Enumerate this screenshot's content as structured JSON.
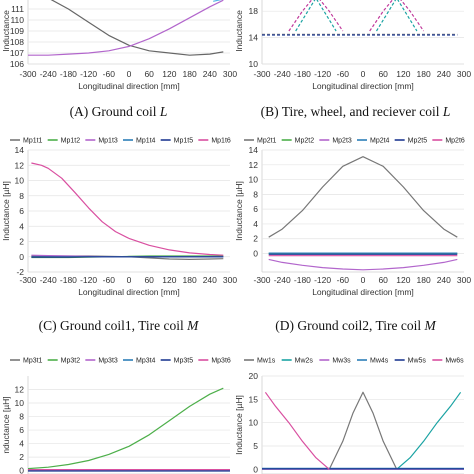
{
  "captions": {
    "a": {
      "text": "(A) Ground coil ",
      "symbol": "L"
    },
    "b": {
      "text": "(B) Tire, wheel, and reciever coil ",
      "symbol": "L"
    },
    "c": {
      "text": "(C) Ground coil1, Tire coil ",
      "symbol": "M"
    },
    "d": {
      "text": "(D) Ground coil2, Tire coil ",
      "symbol": "M"
    }
  },
  "chart_data": [
    {
      "id": "a",
      "type": "line",
      "ylabel": "Inductance",
      "xlabel": "Longitudinal direction [mm]",
      "xticks": [
        -300,
        -240,
        -180,
        -120,
        -60,
        0,
        60,
        120,
        180,
        240,
        300
      ],
      "yticks": [
        106,
        107,
        108,
        109,
        110,
        111
      ],
      "xlim": [
        -300,
        300
      ],
      "ylim": [
        106,
        112
      ],
      "legend": [],
      "series": [
        {
          "color": "#666666",
          "x": [
            -300,
            -240,
            -180,
            -120,
            -60,
            0,
            60,
            120,
            180,
            240,
            280
          ],
          "y": [
            112.6,
            112.0,
            111.0,
            109.8,
            108.6,
            107.7,
            107.2,
            107.0,
            106.8,
            106.9,
            107.1
          ]
        },
        {
          "color": "#b266cc",
          "x": [
            -300,
            -240,
            -180,
            -120,
            -60,
            0,
            60,
            120,
            180,
            240,
            280
          ],
          "y": [
            106.8,
            106.8,
            106.9,
            107.0,
            107.2,
            107.6,
            108.3,
            109.2,
            110.2,
            111.2,
            111.8
          ]
        },
        {
          "color": "#55b5e6",
          "x": [
            250,
            280
          ],
          "y": [
            111.7,
            111.9
          ]
        }
      ]
    },
    {
      "id": "b",
      "type": "line",
      "ylabel": "Inductance",
      "xlabel": "Longitudinal direction [mm]",
      "xticks": [
        -300,
        -240,
        -180,
        -120,
        -60,
        0,
        60,
        120,
        180,
        240,
        300
      ],
      "yticks": [
        10,
        14,
        18
      ],
      "xlim": [
        -300,
        300
      ],
      "ylim": [
        10,
        20
      ],
      "legend": [],
      "series": [
        {
          "color": "#888888",
          "dash": true,
          "x": [
            -300,
            -240,
            -180,
            -120,
            -60,
            0,
            60,
            120,
            180,
            240,
            280
          ],
          "y": [
            14.5,
            14.5,
            14.5,
            14.5,
            14.5,
            14.5,
            14.5,
            14.5,
            14.5,
            14.5,
            14.5
          ]
        },
        {
          "color": "#1f3a93",
          "dash": true,
          "x": [
            -300,
            -240,
            -180,
            -120,
            -60,
            0,
            60,
            120,
            180,
            240,
            280
          ],
          "y": [
            14.4,
            14.4,
            14.4,
            14.4,
            14.4,
            14.4,
            14.4,
            14.4,
            14.4,
            14.4,
            14.4
          ]
        },
        {
          "color": "#c0399b",
          "dash": true,
          "x": [
            -220,
            -180,
            -140,
            -100,
            -60
          ],
          "y": [
            15.0,
            18.0,
            20.5,
            18.0,
            15.0
          ]
        },
        {
          "color": "#1aa3a3",
          "dash": true,
          "x": [
            -200,
            -170,
            -140,
            -110,
            -80
          ],
          "y": [
            15.0,
            17.5,
            20.0,
            17.5,
            15.0
          ]
        },
        {
          "color": "#c0399b",
          "dash": true,
          "x": [
            20,
            60,
            100,
            140,
            180
          ],
          "y": [
            15.0,
            18.0,
            20.5,
            18.0,
            15.0
          ]
        },
        {
          "color": "#1aa3a3",
          "dash": true,
          "x": [
            40,
            70,
            100,
            130,
            160
          ],
          "y": [
            15.0,
            17.5,
            20.0,
            17.5,
            15.0
          ]
        }
      ]
    },
    {
      "id": "c",
      "type": "line",
      "ylabel": "Inductance [µH]",
      "xlabel": "Longitudinal direction [mm]",
      "xticks": [
        -300,
        -240,
        -180,
        -120,
        -60,
        0,
        60,
        120,
        180,
        240,
        300
      ],
      "yticks": [
        -2,
        0,
        2,
        4,
        6,
        8,
        10,
        12,
        14
      ],
      "xlim": [
        -300,
        300
      ],
      "ylim": [
        -2,
        14
      ],
      "legend": [
        "Mp1t1",
        "Mp1t2",
        "Mp1t3",
        "Mp1t4",
        "Mp1t5",
        "Mp1t6"
      ],
      "series": [
        {
          "name": "Mp1t1",
          "color": "#777777",
          "x": [
            -290,
            -240,
            -180,
            -120,
            -60,
            0,
            60,
            120,
            180,
            240,
            280
          ],
          "y": [
            0.1,
            0.1,
            0.1,
            0.1,
            0.05,
            0,
            -0.15,
            -0.3,
            -0.35,
            -0.3,
            -0.25
          ]
        },
        {
          "name": "Mp1t2",
          "color": "#4daf4a",
          "x": [
            -290,
            -240,
            -180,
            -120,
            -60,
            0,
            60,
            120,
            180,
            240,
            280
          ],
          "y": [
            -0.1,
            -0.1,
            -0.1,
            -0.05,
            0,
            0.05,
            0.1,
            0.1,
            0.1,
            0.1,
            0.1
          ]
        },
        {
          "name": "Mp1t3",
          "color": "#b266cc",
          "x": [
            -290,
            -240,
            -180,
            -120,
            -60,
            0,
            60,
            120,
            180,
            240,
            280
          ],
          "y": [
            0.2,
            0.15,
            0.1,
            0.05,
            0,
            0,
            0,
            0,
            0,
            0,
            0
          ]
        },
        {
          "name": "Mp1t4",
          "color": "#2c7fb8",
          "x": [
            -290,
            -240,
            -180,
            -120,
            -60,
            0,
            60,
            120,
            180,
            240,
            280
          ],
          "y": [
            0,
            0,
            0,
            0,
            0,
            0,
            0,
            0,
            0,
            0,
            0
          ]
        },
        {
          "name": "Mp1t5",
          "color": "#1f3a93",
          "x": [
            -290,
            -240,
            -180,
            -120,
            -60,
            0,
            60,
            120,
            180,
            240,
            280
          ],
          "y": [
            -0.05,
            -0.05,
            -0.05,
            0,
            0,
            0,
            0,
            0,
            0,
            0,
            0
          ]
        },
        {
          "name": "Mp1t6",
          "color": "#d94fa0",
          "x": [
            -290,
            -260,
            -240,
            -200,
            -160,
            -120,
            -80,
            -40,
            0,
            60,
            120,
            180,
            240,
            280
          ],
          "y": [
            12.3,
            12.0,
            11.6,
            10.3,
            8.4,
            6.4,
            4.6,
            3.3,
            2.4,
            1.5,
            0.9,
            0.5,
            0.3,
            0.2
          ]
        }
      ]
    },
    {
      "id": "d",
      "type": "line",
      "ylabel": "Inductance [µH]",
      "xlabel": "Longitudinal direction [mm]",
      "xticks": [
        -300,
        -240,
        -180,
        -120,
        -60,
        0,
        60,
        120,
        180,
        240,
        300
      ],
      "yticks": [
        0,
        2,
        4,
        6,
        8,
        10,
        12,
        14
      ],
      "xlim": [
        -300,
        300
      ],
      "ylim": [
        -2.5,
        14
      ],
      "legend": [
        "Mp2t1",
        "Mp2t2",
        "Mp2t3",
        "Mp2t4",
        "Mp2t5",
        "Mp2t6"
      ],
      "series": [
        {
          "name": "Mp2t1",
          "color": "#777777",
          "x": [
            -280,
            -240,
            -180,
            -120,
            -60,
            0,
            60,
            120,
            180,
            240,
            280
          ],
          "y": [
            2.2,
            3.3,
            5.8,
            9.0,
            11.8,
            13.1,
            11.8,
            9.0,
            5.8,
            3.3,
            2.2
          ]
        },
        {
          "name": "Mp2t2",
          "color": "#4daf4a",
          "x": [
            -280,
            -240,
            -180,
            -120,
            -60,
            0,
            60,
            120,
            180,
            240,
            280
          ],
          "y": [
            0,
            0,
            0,
            0,
            0,
            0,
            0,
            0,
            0,
            0,
            0
          ]
        },
        {
          "name": "Mp2t3",
          "color": "#b266cc",
          "x": [
            -280,
            -240,
            -180,
            -120,
            -60,
            0,
            60,
            120,
            180,
            240,
            280
          ],
          "y": [
            -0.8,
            -1.2,
            -1.6,
            -1.9,
            -2.1,
            -2.2,
            -2.1,
            -1.9,
            -1.6,
            -1.2,
            -0.8
          ]
        },
        {
          "name": "Mp2t4",
          "color": "#2c7fb8",
          "x": [
            -280,
            -240,
            -180,
            -120,
            -60,
            0,
            60,
            120,
            180,
            240,
            280
          ],
          "y": [
            0.05,
            0.05,
            0.05,
            0.05,
            0.05,
            0.05,
            0.05,
            0.05,
            0.05,
            0.05,
            0.05
          ]
        },
        {
          "name": "Mp2t5",
          "color": "#1f3a93",
          "x": [
            -280,
            -240,
            -180,
            -120,
            -60,
            0,
            60,
            120,
            180,
            240,
            280
          ],
          "y": [
            -0.1,
            -0.1,
            -0.1,
            -0.1,
            -0.1,
            -0.1,
            -0.1,
            -0.1,
            -0.1,
            -0.1,
            -0.1
          ]
        },
        {
          "name": "Mp2t6",
          "color": "#d94fa0",
          "x": [
            -280,
            -240,
            -180,
            -120,
            -60,
            0,
            60,
            120,
            180,
            240,
            280
          ],
          "y": [
            -0.3,
            -0.3,
            -0.3,
            -0.3,
            -0.3,
            -0.3,
            -0.3,
            -0.3,
            -0.3,
            -0.3,
            -0.3
          ]
        }
      ]
    },
    {
      "id": "e",
      "type": "line",
      "ylabel": "nductance [µH]",
      "xlabel": "",
      "xticks": [],
      "yticks": [
        0,
        2,
        4,
        6,
        8,
        10,
        12
      ],
      "xlim": [
        -300,
        300
      ],
      "ylim": [
        -0.5,
        14
      ],
      "legend": [
        "Mp3t1",
        "Mp3t2",
        "Mp3t3",
        "Mp3t4",
        "Mp3t5",
        "Mp3t6"
      ],
      "series": [
        {
          "name": "Mp3t1",
          "color": "#777777",
          "x": [
            -300,
            300
          ],
          "y": [
            0,
            0
          ]
        },
        {
          "name": "Mp3t2",
          "color": "#4daf4a",
          "x": [
            -300,
            -240,
            -180,
            -120,
            -60,
            0,
            60,
            120,
            180,
            240,
            280
          ],
          "y": [
            0.3,
            0.5,
            0.9,
            1.5,
            2.4,
            3.6,
            5.3,
            7.4,
            9.5,
            11.3,
            12.2
          ]
        },
        {
          "name": "Mp3t3",
          "color": "#b266cc",
          "x": [
            -300,
            300
          ],
          "y": [
            0.1,
            0.1
          ]
        },
        {
          "name": "Mp3t4",
          "color": "#2c7fb8",
          "x": [
            -300,
            300
          ],
          "y": [
            0.05,
            0.05
          ]
        },
        {
          "name": "Mp3t5",
          "color": "#1f3a93",
          "x": [
            -300,
            300
          ],
          "y": [
            -0.05,
            -0.05
          ]
        },
        {
          "name": "Mp3t6",
          "color": "#d94fa0",
          "x": [
            -300,
            300
          ],
          "y": [
            0.15,
            0.15
          ]
        }
      ]
    },
    {
      "id": "f",
      "type": "line",
      "ylabel": "Inductance [µH]",
      "xlabel": "",
      "xticks": [],
      "yticks": [
        0,
        5,
        10,
        15,
        20
      ],
      "xlim": [
        -300,
        300
      ],
      "ylim": [
        -1,
        20
      ],
      "legend": [
        "Mw1s",
        "Mw2s",
        "Mw3s",
        "Mw4s",
        "Mw5s",
        "Mw6s"
      ],
      "series": [
        {
          "name": "Mw1s",
          "color": "#777777",
          "x": [
            -100,
            -60,
            -30,
            0,
            30,
            60,
            100
          ],
          "y": [
            0,
            6,
            12,
            16.5,
            12,
            6,
            0
          ]
        },
        {
          "name": "Mw2s",
          "color": "#1aa3a3",
          "x": [
            100,
            140,
            180,
            220,
            260,
            290
          ],
          "y": [
            0,
            2.5,
            6,
            10,
            13.5,
            16.5
          ]
        },
        {
          "name": "Mw3s",
          "color": "#b266cc",
          "x": [
            -300,
            300
          ],
          "y": [
            0,
            0
          ]
        },
        {
          "name": "Mw4s",
          "color": "#2c7fb8",
          "x": [
            -300,
            300
          ],
          "y": [
            0.2,
            0.2
          ]
        },
        {
          "name": "Mw5s",
          "color": "#1f3a93",
          "x": [
            -300,
            300
          ],
          "y": [
            0.1,
            0.1
          ]
        },
        {
          "name": "Mw6s",
          "color": "#d94fa0",
          "x": [
            -290,
            -260,
            -220,
            -180,
            -140,
            -100
          ],
          "y": [
            16.5,
            13.5,
            10,
            6,
            2.5,
            0
          ]
        }
      ]
    }
  ]
}
